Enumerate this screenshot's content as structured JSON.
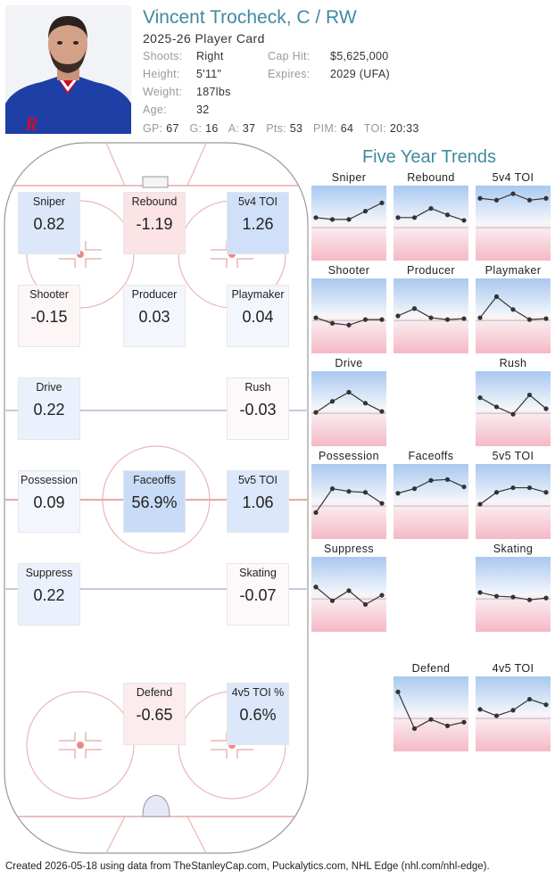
{
  "player": {
    "name": "Vincent Trocheck, C / RW",
    "subtitle": "2025-26 Player Card",
    "photo_icon": "player-headshot-icon",
    "info": [
      {
        "label": "Shoots:",
        "value": "Right"
      },
      {
        "label": "Height:",
        "value": "5'11\""
      },
      {
        "label": "Weight:",
        "value": "187lbs"
      },
      {
        "label": "Age:",
        "value": "32"
      }
    ],
    "contract": [
      {
        "label": "Cap Hit:",
        "value": "$5,625,000"
      },
      {
        "label": "Expires:",
        "value": "2029 (UFA)"
      }
    ],
    "stats": [
      {
        "label": "GP:",
        "value": "67"
      },
      {
        "label": "G:",
        "value": "16"
      },
      {
        "label": "A:",
        "value": "37"
      },
      {
        "label": "Pts:",
        "value": "53"
      },
      {
        "label": "PIM:",
        "value": "64"
      },
      {
        "label": "TOI:",
        "value": "20:33"
      }
    ]
  },
  "rink_cards": [
    {
      "key": "sniper",
      "title": "Sniper",
      "value": "0.82",
      "color": "#dce8fa"
    },
    {
      "key": "rebound",
      "title": "Rebound",
      "value": "-1.19",
      "color": "#fbe3e6"
    },
    {
      "key": "5v4toi",
      "title": "5v4 TOI",
      "value": "1.26",
      "color": "#cfe0f8"
    },
    {
      "key": "shooter",
      "title": "Shooter",
      "value": "-0.15",
      "color": "#fdf6f7"
    },
    {
      "key": "producer",
      "title": "Producer",
      "value": "0.03",
      "color": "#f3f7fd"
    },
    {
      "key": "playmaker",
      "title": "Playmaker",
      "value": "0.04",
      "color": "#f3f7fd"
    },
    {
      "key": "drive",
      "title": "Drive",
      "value": "0.22",
      "color": "#eaf1fc"
    },
    {
      "key": "rush",
      "title": "Rush",
      "value": "-0.03",
      "color": "#fdf8f9"
    },
    {
      "key": "possession",
      "title": "Possession",
      "value": "0.09",
      "color": "#f3f7fd"
    },
    {
      "key": "faceoffs",
      "title": "Faceoffs",
      "value": "56.9%",
      "color": "#c9dcf7"
    },
    {
      "key": "5v5toi",
      "title": "5v5 TOI",
      "value": "1.06",
      "color": "#dbe7fa"
    },
    {
      "key": "suppress",
      "title": "Suppress",
      "value": "0.22",
      "color": "#eaf1fc"
    },
    {
      "key": "skating",
      "title": "Skating",
      "value": "-0.07",
      "color": "#fdf8f9"
    },
    {
      "key": "defend",
      "title": "Defend",
      "value": "-0.65",
      "color": "#fcecee"
    },
    {
      "key": "4v5toi",
      "title": "4v5 TOI %",
      "value": "0.6%",
      "color": "#dce8fa"
    }
  ],
  "trends": {
    "title": "Five Year Trends",
    "charts": [
      {
        "title": "Sniper",
        "values": [
          0.55,
          0.45,
          0.45,
          0.9,
          1.35
        ]
      },
      {
        "title": "Rebound",
        "values": [
          0.55,
          0.55,
          1.05,
          0.7,
          0.4
        ]
      },
      {
        "title": "5v4 TOI",
        "values": [
          1.6,
          1.5,
          1.85,
          1.5,
          1.6
        ]
      },
      {
        "title": "Shooter",
        "values": [
          0.15,
          -0.15,
          -0.25,
          0.05,
          0.05
        ]
      },
      {
        "title": "Producer",
        "values": [
          0.25,
          0.65,
          0.15,
          0.05,
          0.1
        ]
      },
      {
        "title": "Playmaker",
        "values": [
          0.15,
          1.3,
          0.6,
          0.05,
          0.1
        ]
      },
      {
        "title": "Drive",
        "values": [
          0.05,
          0.65,
          1.15,
          0.55,
          0.1
        ]
      },
      {
        "title": "Rush",
        "values": [
          0.85,
          0.35,
          -0.05,
          1.0,
          0.25
        ]
      },
      {
        "title": "Possession",
        "values": [
          -0.35,
          0.95,
          0.8,
          0.75,
          0.15
        ]
      },
      {
        "title": "Faceoffs",
        "values": [
          0.7,
          0.95,
          1.4,
          1.45,
          1.05
        ]
      },
      {
        "title": "5v5 TOI",
        "values": [
          0.1,
          0.75,
          1.0,
          1.0,
          0.75
        ]
      },
      {
        "title": "Suppress",
        "values": [
          0.65,
          -0.1,
          0.45,
          -0.3,
          0.2
        ]
      },
      {
        "title": "Skating",
        "values": [
          0.35,
          0.15,
          0.1,
          -0.05,
          0.05
        ]
      },
      {
        "title": "Defend",
        "values": [
          1.45,
          -0.55,
          -0.05,
          -0.4,
          -0.2
        ]
      },
      {
        "title": "4v5 TOI",
        "values": [
          0.5,
          0.15,
          0.45,
          1.05,
          0.75
        ]
      }
    ]
  },
  "colors": {
    "title": "#3f8aa0",
    "positive": "#cfe0f8",
    "negative": "#f6c8d0",
    "rink_line": "#e8a8a8",
    "blue_line": "#c8c8dc"
  },
  "footer": "Created 2026-05-18 using data from TheStanleyCap.com, Puckalytics.com, NHL Edge (nhl.com/nhl-edge)."
}
